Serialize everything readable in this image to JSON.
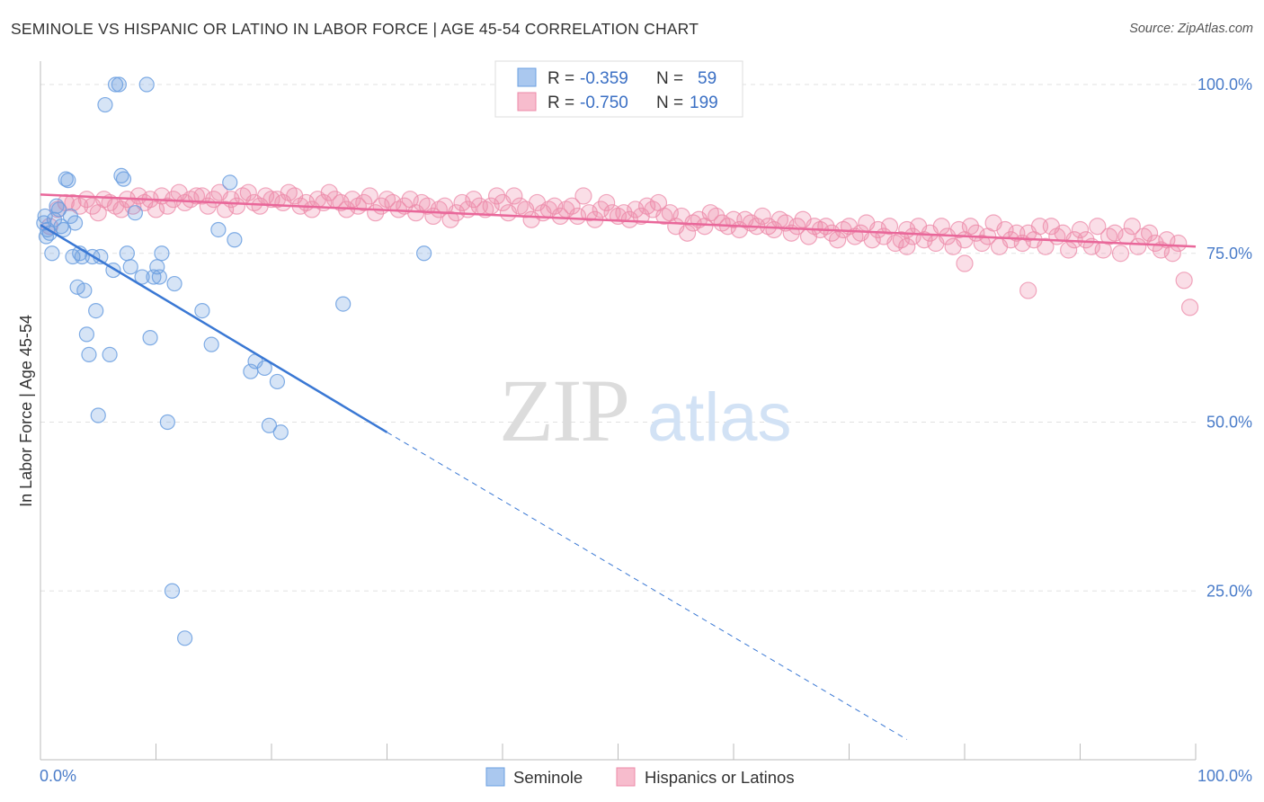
{
  "title": "SEMINOLE VS HISPANIC OR LATINO IN LABOR FORCE | AGE 45-54 CORRELATION CHART",
  "source": "Source: ZipAtlas.com",
  "watermark": {
    "zip": "ZIP",
    "atlas": "atlas"
  },
  "legend_top": {
    "rows": [
      {
        "r_label": "R =",
        "r_value": "-0.359",
        "n_label": "N =",
        "n_value": "59",
        "fill": "#aac8ef",
        "stroke": "#6b9fe0"
      },
      {
        "r_label": "R =",
        "r_value": "-0.750",
        "n_label": "N =",
        "n_value": "199",
        "fill": "#f7bccd",
        "stroke": "#ec8aa8"
      }
    ]
  },
  "legend_bottom": {
    "items": [
      {
        "label": "Seminole",
        "fill": "#aac8ef",
        "stroke": "#6b9fe0"
      },
      {
        "label": "Hispanics or Latinos",
        "fill": "#f7bccd",
        "stroke": "#ec8aa8"
      }
    ]
  },
  "chart_data": {
    "type": "scatter",
    "ylabel": "In Labor Force | Age 45-54",
    "xlim": [
      0,
      100
    ],
    "ylim": [
      0,
      102
    ],
    "x_tick_labels": [
      "0.0%",
      "100.0%"
    ],
    "y_tick_labels": [
      "100.0%",
      "75.0%",
      "50.0%",
      "25.0%"
    ],
    "y_ticks": [
      100,
      75,
      50,
      25
    ],
    "grid": "horizontal dashed",
    "colors": {
      "seminole": "#6b9fe0",
      "seminole_line": "#3a78d4",
      "hispanic": "#ec8aa8",
      "hispanic_line": "#e9679a"
    },
    "series": [
      {
        "name": "Seminole",
        "trend": {
          "x0": 0,
          "y0": 79.2,
          "x1": 30,
          "y1": 48.5,
          "x_dash_end": 75,
          "y_dash_end": 3.0
        },
        "points": [
          [
            0.3,
            79.5
          ],
          [
            0.4,
            80.5
          ],
          [
            0.5,
            77.5
          ],
          [
            0.6,
            78.5
          ],
          [
            0.8,
            78
          ],
          [
            1.0,
            75
          ],
          [
            1.2,
            80
          ],
          [
            1.4,
            82
          ],
          [
            1.6,
            81.5
          ],
          [
            1.8,
            79
          ],
          [
            2.0,
            78.5
          ],
          [
            2.2,
            86
          ],
          [
            2.4,
            85.8
          ],
          [
            2.6,
            80.5
          ],
          [
            2.8,
            74.5
          ],
          [
            3.0,
            79.5
          ],
          [
            3.2,
            70
          ],
          [
            3.4,
            75
          ],
          [
            3.6,
            74.5
          ],
          [
            3.8,
            69.5
          ],
          [
            4.0,
            63
          ],
          [
            4.2,
            60
          ],
          [
            4.5,
            74.5
          ],
          [
            4.8,
            66.5
          ],
          [
            5.0,
            51
          ],
          [
            5.2,
            74.5
          ],
          [
            5.6,
            97
          ],
          [
            6.0,
            60
          ],
          [
            6.3,
            72.5
          ],
          [
            6.5,
            100
          ],
          [
            6.8,
            100
          ],
          [
            7.0,
            86.5
          ],
          [
            7.2,
            86
          ],
          [
            7.5,
            75
          ],
          [
            7.8,
            73
          ],
          [
            8.2,
            81
          ],
          [
            8.8,
            71.5
          ],
          [
            9.2,
            100
          ],
          [
            9.5,
            62.5
          ],
          [
            9.8,
            71.5
          ],
          [
            10.1,
            73
          ],
          [
            10.3,
            71.5
          ],
          [
            10.5,
            75
          ],
          [
            11.0,
            50
          ],
          [
            11.4,
            25
          ],
          [
            11.6,
            70.5
          ],
          [
            12.5,
            18
          ],
          [
            14.0,
            66.5
          ],
          [
            14.8,
            61.5
          ],
          [
            15.4,
            78.5
          ],
          [
            16.4,
            85.5
          ],
          [
            16.8,
            77
          ],
          [
            18.2,
            57.5
          ],
          [
            18.6,
            59
          ],
          [
            19.4,
            58
          ],
          [
            19.8,
            49.5
          ],
          [
            20.5,
            56
          ],
          [
            20.8,
            48.5
          ],
          [
            26.2,
            67.5
          ],
          [
            33.2,
            75
          ]
        ]
      },
      {
        "name": "Hispanics or Latinos",
        "trend": {
          "x0": 0,
          "y0": 83.7,
          "x1": 100,
          "y1": 76.0
        },
        "points": [
          [
            0.8,
            79
          ],
          [
            1.5,
            81.5
          ],
          [
            2.2,
            82.5
          ],
          [
            2.8,
            82.5
          ],
          [
            3.4,
            82
          ],
          [
            4.0,
            83
          ],
          [
            4.5,
            82
          ],
          [
            5.0,
            81
          ],
          [
            5.5,
            83
          ],
          [
            6.0,
            82.5
          ],
          [
            6.5,
            82
          ],
          [
            7.0,
            81.5
          ],
          [
            7.5,
            83
          ],
          [
            8.0,
            82
          ],
          [
            8.5,
            83.5
          ],
          [
            9.0,
            82.5
          ],
          [
            9.5,
            83
          ],
          [
            10.0,
            81.5
          ],
          [
            10.5,
            83.5
          ],
          [
            11.0,
            82
          ],
          [
            11.5,
            83
          ],
          [
            12.0,
            84
          ],
          [
            12.5,
            82.5
          ],
          [
            13.0,
            83
          ],
          [
            13.5,
            83.5
          ],
          [
            14.0,
            83.5
          ],
          [
            14.5,
            82
          ],
          [
            15.0,
            83
          ],
          [
            15.5,
            84
          ],
          [
            16.0,
            81.5
          ],
          [
            16.5,
            83
          ],
          [
            17.0,
            82
          ],
          [
            17.5,
            83.5
          ],
          [
            18.0,
            84
          ],
          [
            18.5,
            82.5
          ],
          [
            19.0,
            82
          ],
          [
            19.5,
            83.5
          ],
          [
            20.0,
            83
          ],
          [
            20.5,
            83
          ],
          [
            21.0,
            82.5
          ],
          [
            21.5,
            84
          ],
          [
            22.0,
            83.5
          ],
          [
            22.5,
            82
          ],
          [
            23.0,
            82.5
          ],
          [
            23.5,
            81.5
          ],
          [
            24.0,
            83
          ],
          [
            24.5,
            82.5
          ],
          [
            25.0,
            84
          ],
          [
            25.5,
            83
          ],
          [
            26.0,
            82.5
          ],
          [
            26.5,
            81.5
          ],
          [
            27.0,
            83
          ],
          [
            27.5,
            82
          ],
          [
            28.0,
            82.5
          ],
          [
            28.5,
            83.5
          ],
          [
            29.0,
            81
          ],
          [
            29.5,
            82
          ],
          [
            30.0,
            83
          ],
          [
            30.5,
            82.5
          ],
          [
            31.0,
            81.5
          ],
          [
            31.5,
            82
          ],
          [
            32.0,
            83
          ],
          [
            32.5,
            81
          ],
          [
            33.0,
            82.5
          ],
          [
            33.5,
            82
          ],
          [
            34.0,
            80.5
          ],
          [
            34.5,
            81.5
          ],
          [
            35.0,
            82
          ],
          [
            35.5,
            80
          ],
          [
            36.0,
            81
          ],
          [
            36.5,
            82.5
          ],
          [
            37.0,
            81.5
          ],
          [
            37.5,
            83
          ],
          [
            38.0,
            82
          ],
          [
            38.5,
            81.5
          ],
          [
            39.0,
            82
          ],
          [
            39.5,
            83.5
          ],
          [
            40.0,
            82.5
          ],
          [
            40.5,
            81
          ],
          [
            41.0,
            83.5
          ],
          [
            41.5,
            82
          ],
          [
            42.0,
            81.5
          ],
          [
            42.5,
            80
          ],
          [
            43.0,
            82.5
          ],
          [
            43.5,
            81
          ],
          [
            44.0,
            81.5
          ],
          [
            44.5,
            82
          ],
          [
            45.0,
            80.5
          ],
          [
            45.5,
            81.5
          ],
          [
            46.0,
            82
          ],
          [
            46.5,
            80.5
          ],
          [
            47.0,
            83.5
          ],
          [
            47.5,
            81
          ],
          [
            48.0,
            80
          ],
          [
            48.5,
            81.5
          ],
          [
            49.0,
            82.5
          ],
          [
            49.5,
            81
          ],
          [
            50.0,
            80.5
          ],
          [
            50.5,
            81
          ],
          [
            51.0,
            80
          ],
          [
            51.5,
            81.5
          ],
          [
            52.0,
            80.5
          ],
          [
            52.5,
            82
          ],
          [
            53.0,
            81.5
          ],
          [
            53.5,
            82.5
          ],
          [
            54.0,
            80.5
          ],
          [
            54.5,
            81
          ],
          [
            55.0,
            79
          ],
          [
            55.5,
            80.5
          ],
          [
            56.0,
            78
          ],
          [
            56.5,
            79.5
          ],
          [
            57.0,
            80
          ],
          [
            57.5,
            79
          ],
          [
            58.0,
            81
          ],
          [
            58.5,
            80.5
          ],
          [
            59.0,
            79.5
          ],
          [
            59.5,
            79
          ],
          [
            60.0,
            80
          ],
          [
            60.5,
            78.5
          ],
          [
            61.0,
            80
          ],
          [
            61.5,
            79.5
          ],
          [
            62.0,
            79
          ],
          [
            62.5,
            80.5
          ],
          [
            63.0,
            79
          ],
          [
            63.5,
            78.5
          ],
          [
            64.0,
            80
          ],
          [
            64.5,
            79.5
          ],
          [
            65.0,
            78
          ],
          [
            65.5,
            79
          ],
          [
            66.0,
            80
          ],
          [
            66.5,
            77.5
          ],
          [
            67.0,
            79
          ],
          [
            67.5,
            78.5
          ],
          [
            68.0,
            79
          ],
          [
            68.5,
            78
          ],
          [
            69.0,
            77
          ],
          [
            69.5,
            78.5
          ],
          [
            70.0,
            79
          ],
          [
            70.5,
            77.5
          ],
          [
            71.0,
            78
          ],
          [
            71.5,
            79.5
          ],
          [
            72.0,
            77
          ],
          [
            72.5,
            78.5
          ],
          [
            73.0,
            77.5
          ],
          [
            73.5,
            79
          ],
          [
            74.0,
            76.5
          ],
          [
            74.5,
            77
          ],
          [
            75.0,
            78.5
          ],
          [
            75.5,
            77.5
          ],
          [
            76.0,
            79
          ],
          [
            76.5,
            77
          ],
          [
            77.0,
            78
          ],
          [
            77.5,
            76.5
          ],
          [
            78.0,
            79
          ],
          [
            78.5,
            77.5
          ],
          [
            79.0,
            76
          ],
          [
            79.5,
            78.5
          ],
          [
            80.0,
            77
          ],
          [
            80.5,
            79
          ],
          [
            81.0,
            78
          ],
          [
            81.5,
            76.5
          ],
          [
            82.0,
            77.5
          ],
          [
            82.5,
            79.5
          ],
          [
            83.0,
            76
          ],
          [
            83.5,
            78.5
          ],
          [
            84.0,
            77
          ],
          [
            84.5,
            78
          ],
          [
            85.0,
            76.5
          ],
          [
            85.5,
            78
          ],
          [
            86.0,
            77
          ],
          [
            86.5,
            79
          ],
          [
            87.0,
            76
          ],
          [
            87.5,
            79
          ],
          [
            88.0,
            77.5
          ],
          [
            88.5,
            78
          ],
          [
            89.0,
            75.5
          ],
          [
            89.5,
            77
          ],
          [
            90.0,
            78.5
          ],
          [
            90.5,
            77
          ],
          [
            91.0,
            76
          ],
          [
            91.5,
            79
          ],
          [
            92.0,
            75.5
          ],
          [
            92.5,
            77.5
          ],
          [
            93.0,
            78
          ],
          [
            93.5,
            75
          ],
          [
            94.0,
            77.5
          ],
          [
            94.5,
            79
          ],
          [
            95.0,
            76
          ],
          [
            95.5,
            77.5
          ],
          [
            96.0,
            78
          ],
          [
            96.5,
            76.5
          ],
          [
            97.0,
            75.5
          ],
          [
            97.5,
            77
          ],
          [
            98.0,
            75
          ],
          [
            98.5,
            76.5
          ],
          [
            99.0,
            71
          ],
          [
            99.5,
            67
          ],
          [
            80.0,
            73.5
          ],
          [
            85.5,
            69.5
          ],
          [
            75.0,
            76
          ]
        ]
      }
    ]
  }
}
